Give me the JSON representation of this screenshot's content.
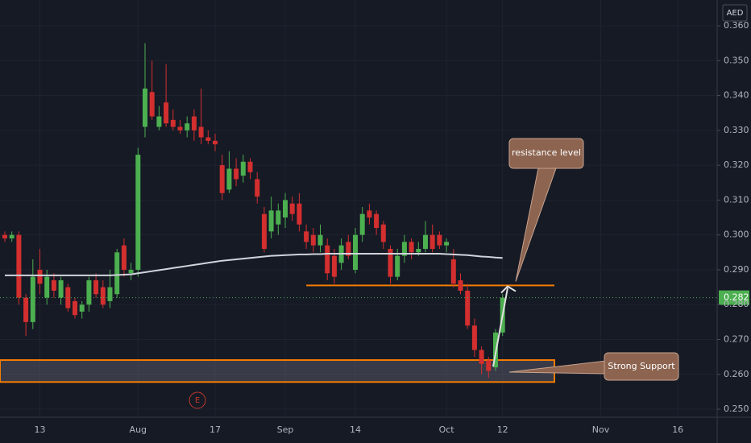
{
  "chart_data": {
    "type": "candlestick",
    "currency": "AED",
    "categories": [
      null,
      null,
      null,
      null,
      null,
      "13",
      null,
      null,
      null,
      null,
      null,
      null,
      null,
      null,
      null,
      null,
      null,
      null,
      null,
      "Aug",
      null,
      null,
      null,
      null,
      null,
      null,
      null,
      null,
      null,
      null,
      "17",
      null,
      null,
      null,
      null,
      null,
      null,
      null,
      null,
      null,
      "Sep",
      null,
      null,
      null,
      null,
      null,
      null,
      null,
      null,
      null,
      "14",
      null,
      null,
      null,
      null,
      null,
      null,
      null,
      null,
      null,
      null,
      null,
      null,
      "Oct",
      null,
      null,
      null,
      null,
      null,
      null,
      null,
      "12",
      null,
      null,
      null,
      null,
      null,
      null,
      null,
      null,
      null,
      null,
      null,
      null,
      null,
      "Nov",
      null,
      null,
      null,
      null,
      null,
      null,
      null,
      null,
      null,
      null,
      "16",
      null,
      null,
      null,
      null,
      null
    ],
    "open": [
      0.3,
      0.299,
      0.3,
      0.282,
      0.275,
      0.29,
      0.282,
      0.287,
      0.282,
      0.285,
      0.281,
      0.278,
      0.28,
      0.287,
      0.285,
      0.281,
      0.283,
      0.297,
      0.289,
      0.29,
      0.331,
      0.341,
      0.331,
      0.338,
      0.333,
      0.331,
      0.33,
      0.334,
      0.331,
      0.328,
      0.327,
      0.32,
      0.313,
      0.319,
      0.317,
      0.321,
      0.316,
      0.306,
      0.301,
      0.303,
      0.305,
      0.309,
      0.309,
      0.301,
      0.3,
      0.297,
      0.297,
      0.294,
      0.292,
      0.298,
      0.29,
      0.3,
      0.307,
      0.306,
      0.303,
      0.296,
      0.288,
      0.294,
      0.298,
      0.295,
      0.296,
      0.3,
      0.3,
      0.297,
      0.293,
      0.287,
      0.284,
      0.274,
      0.267,
      0.264,
      0.262,
      0.272,
      null,
      null,
      null,
      null,
      null,
      null,
      null,
      null,
      null,
      null,
      null,
      null,
      null,
      null,
      null,
      null,
      null,
      null,
      null,
      null,
      null,
      null,
      null,
      null,
      null,
      null,
      null,
      null,
      null,
      null
    ],
    "high": [
      0.301,
      0.301,
      0.301,
      0.283,
      0.293,
      0.296,
      0.29,
      0.289,
      0.288,
      0.286,
      0.282,
      0.281,
      0.288,
      0.289,
      0.287,
      0.29,
      0.296,
      0.299,
      0.292,
      0.325,
      0.355,
      0.35,
      0.337,
      0.349,
      0.336,
      0.333,
      0.334,
      0.336,
      0.342,
      0.33,
      0.329,
      0.323,
      0.324,
      0.322,
      0.323,
      0.322,
      0.318,
      0.308,
      0.311,
      0.309,
      0.312,
      0.311,
      0.312,
      0.303,
      0.302,
      0.303,
      0.299,
      0.296,
      0.299,
      0.3,
      0.302,
      0.308,
      0.309,
      0.307,
      0.304,
      0.297,
      0.296,
      0.3,
      0.299,
      0.298,
      0.304,
      0.303,
      0.301,
      0.299,
      0.296,
      0.289,
      0.286,
      0.276,
      0.268,
      0.265,
      0.273,
      0.283,
      null,
      null,
      null,
      null,
      null,
      null,
      null,
      null,
      null,
      null,
      null,
      null,
      null,
      null,
      null,
      null,
      null,
      null,
      null,
      null,
      null,
      null,
      null,
      null,
      null,
      null,
      null,
      null,
      null,
      null
    ],
    "low": [
      0.298,
      0.298,
      0.28,
      0.271,
      0.273,
      0.283,
      0.28,
      0.282,
      0.28,
      0.278,
      0.276,
      0.276,
      0.278,
      0.282,
      0.279,
      0.279,
      0.282,
      0.288,
      0.287,
      0.288,
      0.328,
      0.333,
      0.33,
      0.331,
      0.33,
      0.329,
      0.328,
      0.327,
      0.326,
      0.326,
      0.324,
      0.31,
      0.312,
      0.314,
      0.315,
      0.316,
      0.309,
      0.295,
      0.299,
      0.3,
      0.302,
      0.304,
      0.301,
      0.296,
      0.295,
      0.295,
      0.287,
      0.286,
      0.29,
      0.293,
      0.289,
      0.298,
      0.303,
      0.3,
      0.296,
      0.286,
      0.287,
      0.292,
      0.293,
      0.294,
      0.295,
      0.295,
      0.296,
      0.295,
      0.285,
      0.283,
      0.273,
      0.265,
      0.26,
      0.259,
      0.261,
      0.271,
      null,
      null,
      null,
      null,
      null,
      null,
      null,
      null,
      null,
      null,
      null,
      null,
      null,
      null,
      null,
      null,
      null,
      null,
      null,
      null,
      null,
      null,
      null,
      null,
      null,
      null,
      null,
      null,
      null,
      null
    ],
    "close": [
      0.299,
      0.3,
      0.282,
      0.275,
      0.288,
      0.286,
      0.288,
      0.284,
      0.287,
      0.279,
      0.277,
      0.28,
      0.287,
      0.283,
      0.28,
      0.285,
      0.295,
      0.29,
      0.29,
      0.323,
      0.342,
      0.334,
      0.334,
      0.332,
      0.331,
      0.33,
      0.332,
      0.33,
      0.328,
      0.327,
      0.326,
      0.312,
      0.319,
      0.316,
      0.321,
      0.318,
      0.311,
      0.296,
      0.307,
      0.307,
      0.31,
      0.306,
      0.303,
      0.298,
      0.297,
      0.3,
      0.289,
      0.288,
      0.297,
      0.294,
      0.3,
      0.306,
      0.305,
      0.302,
      0.298,
      0.288,
      0.294,
      0.298,
      0.295,
      0.296,
      0.3,
      0.296,
      0.297,
      0.298,
      0.286,
      0.284,
      0.274,
      0.267,
      0.263,
      0.261,
      0.272,
      0.282,
      null,
      null,
      null,
      null,
      null,
      null,
      null,
      null,
      null,
      null,
      null,
      null,
      null,
      null,
      null,
      null,
      null,
      null,
      null,
      null,
      null,
      null,
      null,
      null,
      null,
      null,
      null,
      null,
      null,
      null
    ],
    "ma": {
      "color": "#d1d4dc",
      "values": [
        0.2884,
        0.2884,
        0.2884,
        0.2884,
        0.2884,
        0.2884,
        0.2884,
        0.2884,
        0.2884,
        0.2884,
        0.2884,
        0.2884,
        0.2884,
        0.2884,
        0.2884,
        0.2884,
        0.2885,
        0.2886,
        0.2887,
        0.289,
        0.2893,
        0.2896,
        0.2899,
        0.2902,
        0.2905,
        0.2908,
        0.2911,
        0.2914,
        0.2917,
        0.292,
        0.2923,
        0.2926,
        0.2928,
        0.293,
        0.2932,
        0.2934,
        0.2936,
        0.2938,
        0.294,
        0.2941,
        0.2942,
        0.2943,
        0.2944,
        0.2944,
        0.2945,
        0.2945,
        0.2946,
        0.2946,
        0.2946,
        0.2946,
        0.2946,
        0.2946,
        0.2946,
        0.2946,
        0.2946,
        0.2946,
        0.2946,
        0.2946,
        0.2946,
        0.2946,
        0.2946,
        0.2946,
        0.2946,
        0.2945,
        0.2944,
        0.2943,
        0.2942,
        0.294,
        0.2938,
        0.2937,
        0.2935,
        0.2934,
        null,
        null,
        null,
        null,
        null,
        null,
        null,
        null,
        null,
        null,
        null,
        null,
        null,
        null,
        null,
        null,
        null,
        null,
        null,
        null,
        null,
        null,
        null,
        null,
        null,
        null,
        null,
        null,
        null,
        null
      ]
    },
    "up_color": "#4caf50",
    "down_color": "#d32f2f",
    "ylim": [
      0.2477,
      0.3674
    ],
    "yticks": [
      {
        "value": 0.25,
        "label": "0.250"
      },
      {
        "value": 0.26,
        "label": "0.260"
      },
      {
        "value": 0.27,
        "label": "0.270"
      },
      {
        "value": 0.28,
        "label": "0.280"
      },
      {
        "value": 0.29,
        "label": "0.290"
      },
      {
        "value": 0.3,
        "label": "0.300"
      },
      {
        "value": 0.31,
        "label": "0.310"
      },
      {
        "value": 0.32,
        "label": "0.320"
      },
      {
        "value": 0.33,
        "label": "0.330"
      },
      {
        "value": 0.34,
        "label": "0.340"
      },
      {
        "value": 0.35,
        "label": "0.350"
      },
      {
        "value": 0.36,
        "label": "0.360"
      }
    ],
    "grid": true,
    "last_price": 0.282,
    "resistance": {
      "text": "resistance level",
      "value": 0.2855,
      "color": "#f57c00"
    },
    "support": {
      "text": "Strong Support",
      "low": 0.2578,
      "high": 0.2641,
      "color": "#f57c00"
    },
    "event": "E"
  }
}
